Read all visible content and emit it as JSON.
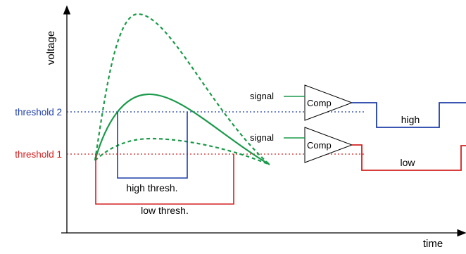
{
  "axes": {
    "y_label": "voltage",
    "x_label": "time"
  },
  "thresholds": [
    {
      "label": "threshold 2",
      "color": "#1f3fa8"
    },
    {
      "label": "threshold 1",
      "color": "#d42020"
    }
  ],
  "pulses": [
    {
      "label": "high thresh.",
      "color": "#1f3fa8"
    },
    {
      "label": "low thresh.",
      "color": "#d42020"
    }
  ],
  "comparators": [
    {
      "label": "Comp",
      "input_label": "signal",
      "output_label": "high",
      "output_color": "#1f3fa8"
    },
    {
      "label": "Comp",
      "input_label": "signal",
      "output_label": "low",
      "output_color": "#d42020"
    }
  ],
  "signal_color": "#1a9a4a"
}
